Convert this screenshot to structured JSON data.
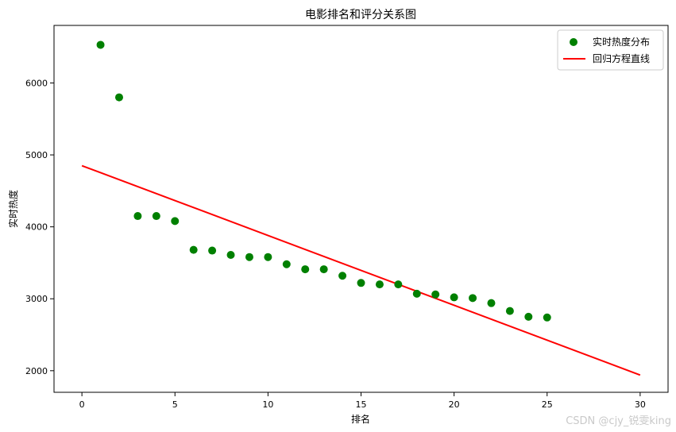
{
  "chart_data": {
    "type": "scatter",
    "title": "电影排名和评分关系图",
    "xlabel": "排名",
    "ylabel": "实时热度",
    "xlim": [
      -1.5,
      31.5
    ],
    "ylim": [
      1700,
      6800
    ],
    "xticks": [
      0,
      5,
      10,
      15,
      20,
      25,
      30
    ],
    "yticks": [
      2000,
      3000,
      4000,
      5000,
      6000
    ],
    "grid": false,
    "legend_position": "top-right",
    "series": [
      {
        "name": "实时热度分布",
        "kind": "scatter",
        "color": "#008000",
        "x": [
          1,
          2,
          3,
          4,
          5,
          6,
          7,
          8,
          9,
          10,
          11,
          12,
          13,
          14,
          15,
          16,
          17,
          18,
          19,
          20,
          21,
          22,
          23,
          24,
          25
        ],
        "y": [
          6530,
          5800,
          4150,
          4150,
          4080,
          3680,
          3670,
          3610,
          3580,
          3580,
          3480,
          3410,
          3410,
          3320,
          3220,
          3200,
          3200,
          3070,
          3060,
          3020,
          3010,
          2940,
          2830,
          2750,
          2740
        ]
      },
      {
        "name": "回归方程直线",
        "kind": "line",
        "color": "#ff0000",
        "x": [
          0,
          30
        ],
        "y": [
          4850,
          1940
        ]
      }
    ]
  },
  "watermark": "CSDN @cjy_锐雯king"
}
